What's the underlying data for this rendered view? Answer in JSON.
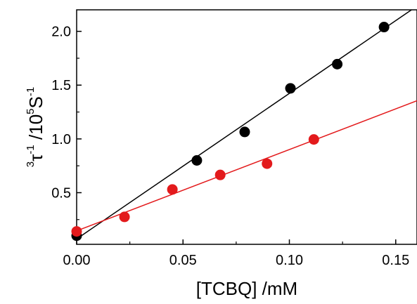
{
  "chart_data": {
    "type": "scatter",
    "xlabel": "[TCBQ] /mM",
    "ylabel": {
      "pre_sup": "3",
      "base": "τ",
      "base_sup": "-1",
      "unit_prefix": " /10",
      "unit_prefix_sup": "5",
      "unit": "S",
      "unit_sup": "-1"
    },
    "xlim": [
      0.0,
      0.16
    ],
    "ylim": [
      0.02,
      2.2
    ],
    "xticks": [
      0.0,
      0.05,
      0.1,
      0.15
    ],
    "xtick_labels": [
      "0.00",
      "0.05",
      "0.10",
      "0.15"
    ],
    "yticks": [
      0.5,
      1.0,
      1.5,
      2.0
    ],
    "ytick_labels": [
      "0.5",
      "1.0",
      "1.5",
      "2.0"
    ],
    "grid": false,
    "series": [
      {
        "color": "#000000",
        "x": [
          0.0,
          0.0565,
          0.079,
          0.1005,
          0.1225,
          0.1445
        ],
        "y": [
          0.1,
          0.8,
          1.065,
          1.47,
          1.695,
          2.04
        ],
        "fit": {
          "x": [
            0.0,
            0.16
          ],
          "y": [
            0.07,
            2.235
          ]
        }
      },
      {
        "color": "#e31a1c",
        "x": [
          0.0,
          0.0225,
          0.045,
          0.0675,
          0.0895,
          0.1115
        ],
        "y": [
          0.14,
          0.275,
          0.53,
          0.665,
          0.77,
          0.995
        ],
        "fit": {
          "x": [
            0.0,
            0.16
          ],
          "y": [
            0.145,
            1.355
          ]
        }
      }
    ]
  }
}
